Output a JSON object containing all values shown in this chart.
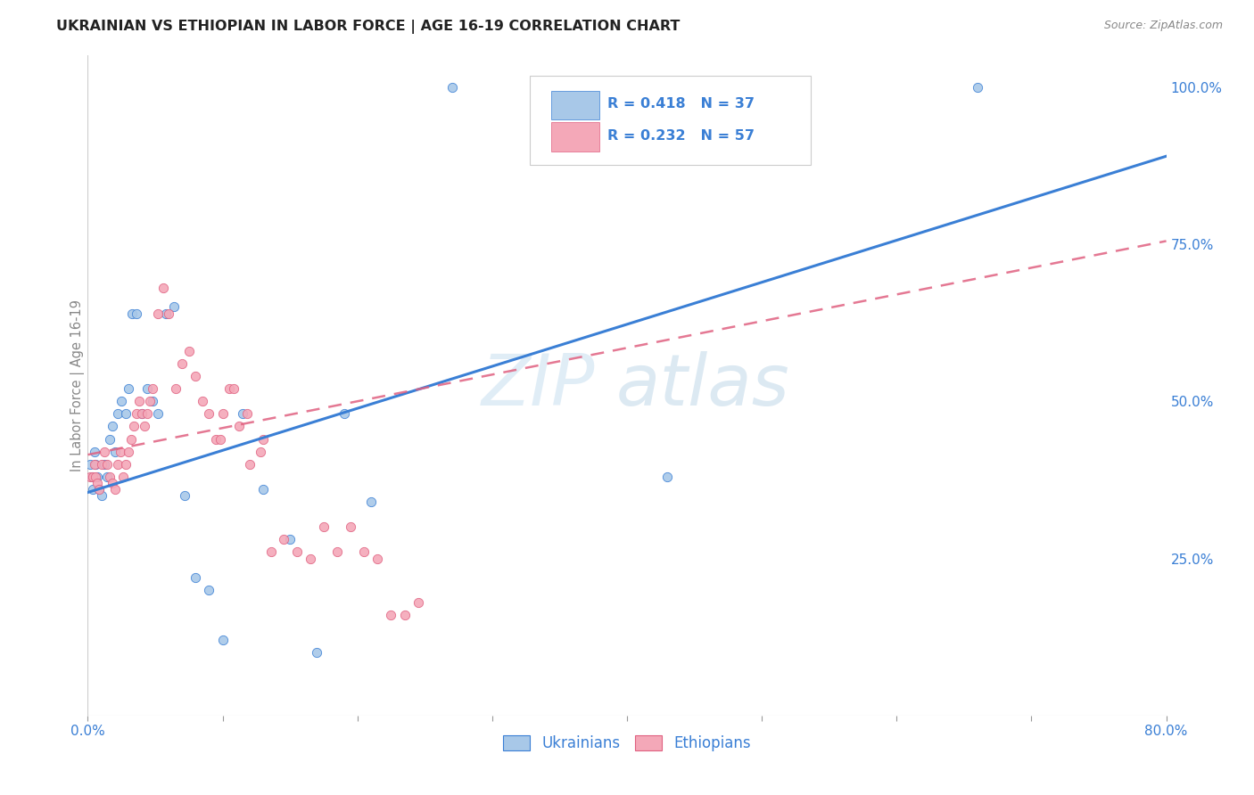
{
  "title": "UKRAINIAN VS ETHIOPIAN IN LABOR FORCE | AGE 16-19 CORRELATION CHART",
  "source": "Source: ZipAtlas.com",
  "ylabel": "In Labor Force | Age 16-19",
  "xlim": [
    0.0,
    0.8
  ],
  "ylim": [
    0.0,
    1.05
  ],
  "xticks": [
    0.0,
    0.1,
    0.2,
    0.3,
    0.4,
    0.5,
    0.6,
    0.7,
    0.8
  ],
  "xticklabels": [
    "0.0%",
    "",
    "",
    "",
    "",
    "",
    "",
    "",
    "80.0%"
  ],
  "ytick_positions": [
    0.25,
    0.5,
    0.75,
    1.0
  ],
  "yticklabels": [
    "25.0%",
    "50.0%",
    "75.0%",
    "100.0%"
  ],
  "color_ukrainian": "#a8c8e8",
  "color_ethiopian": "#f4a8b8",
  "color_line_ukrainian": "#3a7fd5",
  "color_line_ethiopian": "#e06080",
  "ukr_x": [
    0.002,
    0.003,
    0.004,
    0.005,
    0.006,
    0.007,
    0.008,
    0.01,
    0.012,
    0.014,
    0.016,
    0.018,
    0.02,
    0.022,
    0.025,
    0.028,
    0.03,
    0.033,
    0.036,
    0.04,
    0.044,
    0.048,
    0.052,
    0.058,
    0.064,
    0.072,
    0.08,
    0.09,
    0.1,
    0.115,
    0.13,
    0.15,
    0.17,
    0.19,
    0.21,
    0.27,
    0.43,
    0.66
  ],
  "ukr_y": [
    0.4,
    0.38,
    0.36,
    0.42,
    0.4,
    0.38,
    0.36,
    0.35,
    0.4,
    0.38,
    0.44,
    0.46,
    0.42,
    0.48,
    0.5,
    0.48,
    0.52,
    0.64,
    0.64,
    0.48,
    0.52,
    0.5,
    0.48,
    0.64,
    0.65,
    0.35,
    0.22,
    0.2,
    0.12,
    0.48,
    0.36,
    0.28,
    0.1,
    0.48,
    0.34,
    1.0,
    0.38,
    1.0
  ],
  "eth_x": [
    0.002,
    0.004,
    0.005,
    0.006,
    0.007,
    0.008,
    0.01,
    0.012,
    0.014,
    0.016,
    0.018,
    0.02,
    0.022,
    0.024,
    0.026,
    0.028,
    0.03,
    0.032,
    0.034,
    0.036,
    0.038,
    0.04,
    0.042,
    0.044,
    0.046,
    0.048,
    0.052,
    0.056,
    0.06,
    0.065,
    0.07,
    0.075,
    0.08,
    0.085,
    0.09,
    0.095,
    0.1,
    0.105,
    0.112,
    0.12,
    0.128,
    0.136,
    0.145,
    0.155,
    0.165,
    0.175,
    0.185,
    0.195,
    0.205,
    0.215,
    0.225,
    0.235,
    0.245,
    0.13,
    0.118,
    0.108,
    0.098
  ],
  "eth_y": [
    0.38,
    0.38,
    0.4,
    0.38,
    0.37,
    0.36,
    0.4,
    0.42,
    0.4,
    0.38,
    0.37,
    0.36,
    0.4,
    0.42,
    0.38,
    0.4,
    0.42,
    0.44,
    0.46,
    0.48,
    0.5,
    0.48,
    0.46,
    0.48,
    0.5,
    0.52,
    0.64,
    0.68,
    0.64,
    0.52,
    0.56,
    0.58,
    0.54,
    0.5,
    0.48,
    0.44,
    0.48,
    0.52,
    0.46,
    0.4,
    0.42,
    0.26,
    0.28,
    0.26,
    0.25,
    0.3,
    0.26,
    0.3,
    0.26,
    0.25,
    0.16,
    0.16,
    0.18,
    0.44,
    0.48,
    0.52,
    0.44
  ],
  "ukr_line_x": [
    0.0,
    0.8
  ],
  "ukr_line_y": [
    0.355,
    0.89
  ],
  "eth_line_x": [
    0.0,
    0.8
  ],
  "eth_line_y": [
    0.415,
    0.755
  ]
}
